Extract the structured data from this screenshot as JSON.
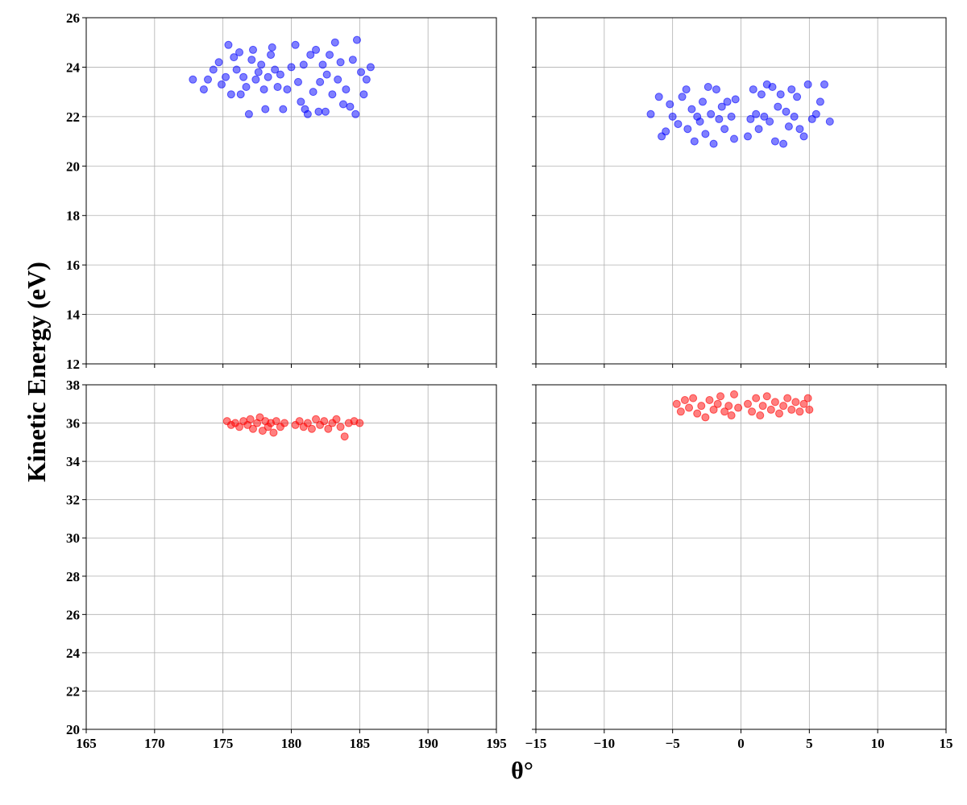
{
  "chart_data": {
    "type": "scatter",
    "xlabel": "θ°",
    "ylabel": "Kinetic Energy (eV)",
    "grid": true,
    "panels": [
      {
        "row": 0,
        "col": 0,
        "xlim": [
          165,
          195
        ],
        "ylim": [
          12,
          26
        ],
        "xticks": [
          165,
          170,
          175,
          180,
          185,
          190,
          195
        ],
        "yticks": [
          12,
          14,
          16,
          18,
          20,
          22,
          24,
          26
        ],
        "show_xticklabels": false,
        "show_yticklabels": true,
        "color": "#0000ff",
        "points": [
          [
            172.8,
            23.5
          ],
          [
            173.6,
            23.1
          ],
          [
            173.9,
            23.5
          ],
          [
            174.3,
            23.9
          ],
          [
            174.7,
            24.2
          ],
          [
            174.9,
            23.3
          ],
          [
            175.2,
            23.6
          ],
          [
            175.4,
            24.9
          ],
          [
            175.6,
            22.9
          ],
          [
            175.8,
            24.4
          ],
          [
            176.0,
            23.9
          ],
          [
            176.2,
            24.6
          ],
          [
            176.3,
            22.9
          ],
          [
            176.5,
            23.6
          ],
          [
            176.7,
            23.2
          ],
          [
            176.9,
            22.1
          ],
          [
            177.1,
            24.3
          ],
          [
            177.2,
            24.7
          ],
          [
            177.4,
            23.5
          ],
          [
            177.6,
            23.8
          ],
          [
            177.8,
            24.1
          ],
          [
            178.0,
            23.1
          ],
          [
            178.1,
            22.3
          ],
          [
            178.3,
            23.6
          ],
          [
            178.5,
            24.5
          ],
          [
            178.6,
            24.8
          ],
          [
            178.8,
            23.9
          ],
          [
            179.0,
            23.2
          ],
          [
            179.2,
            23.7
          ],
          [
            179.4,
            22.3
          ],
          [
            179.7,
            23.1
          ],
          [
            180.0,
            24.0
          ],
          [
            180.3,
            24.9
          ],
          [
            180.5,
            23.4
          ],
          [
            180.7,
            22.6
          ],
          [
            180.9,
            24.1
          ],
          [
            181.0,
            22.3
          ],
          [
            181.2,
            22.1
          ],
          [
            181.4,
            24.5
          ],
          [
            181.6,
            23.0
          ],
          [
            181.8,
            24.7
          ],
          [
            182.0,
            22.2
          ],
          [
            182.1,
            23.4
          ],
          [
            182.3,
            24.1
          ],
          [
            182.5,
            22.2
          ],
          [
            182.6,
            23.7
          ],
          [
            182.8,
            24.5
          ],
          [
            183.0,
            22.9
          ],
          [
            183.2,
            25.0
          ],
          [
            183.4,
            23.5
          ],
          [
            183.6,
            24.2
          ],
          [
            183.8,
            22.5
          ],
          [
            184.0,
            23.1
          ],
          [
            184.3,
            22.4
          ],
          [
            184.5,
            24.3
          ],
          [
            184.7,
            22.1
          ],
          [
            184.8,
            25.1
          ],
          [
            185.1,
            23.8
          ],
          [
            185.3,
            22.9
          ],
          [
            185.5,
            23.5
          ],
          [
            185.8,
            24.0
          ]
        ]
      },
      {
        "row": 0,
        "col": 1,
        "xlim": [
          -15,
          15
        ],
        "ylim": [
          12,
          26
        ],
        "xticks": [
          -15,
          -10,
          -5,
          0,
          5,
          10,
          15
        ],
        "yticks": [
          12,
          14,
          16,
          18,
          20,
          22,
          24,
          26
        ],
        "show_xticklabels": false,
        "show_yticklabels": false,
        "color": "#0000ff",
        "points": [
          [
            -6.6,
            22.1
          ],
          [
            -6.0,
            22.8
          ],
          [
            -5.8,
            21.2
          ],
          [
            -5.5,
            21.4
          ],
          [
            -5.2,
            22.5
          ],
          [
            -5.0,
            22.0
          ],
          [
            -4.6,
            21.7
          ],
          [
            -4.3,
            22.8
          ],
          [
            -4.0,
            23.1
          ],
          [
            -3.9,
            21.5
          ],
          [
            -3.6,
            22.3
          ],
          [
            -3.4,
            21.0
          ],
          [
            -3.2,
            22.0
          ],
          [
            -3.0,
            21.8
          ],
          [
            -2.8,
            22.6
          ],
          [
            -2.6,
            21.3
          ],
          [
            -2.4,
            23.2
          ],
          [
            -2.2,
            22.1
          ],
          [
            -2.0,
            20.9
          ],
          [
            -1.8,
            23.1
          ],
          [
            -1.6,
            21.9
          ],
          [
            -1.4,
            22.4
          ],
          [
            -1.2,
            21.5
          ],
          [
            -1.0,
            22.6
          ],
          [
            -0.7,
            22.0
          ],
          [
            -0.5,
            21.1
          ],
          [
            -0.4,
            22.7
          ],
          [
            0.5,
            21.2
          ],
          [
            0.7,
            21.9
          ],
          [
            0.9,
            23.1
          ],
          [
            1.1,
            22.1
          ],
          [
            1.3,
            21.5
          ],
          [
            1.5,
            22.9
          ],
          [
            1.7,
            22.0
          ],
          [
            1.9,
            23.3
          ],
          [
            2.1,
            21.8
          ],
          [
            2.3,
            23.2
          ],
          [
            2.5,
            21.0
          ],
          [
            2.7,
            22.4
          ],
          [
            2.9,
            22.9
          ],
          [
            3.1,
            20.9
          ],
          [
            3.3,
            22.2
          ],
          [
            3.5,
            21.6
          ],
          [
            3.7,
            23.1
          ],
          [
            3.9,
            22.0
          ],
          [
            4.1,
            22.8
          ],
          [
            4.3,
            21.5
          ],
          [
            4.6,
            21.2
          ],
          [
            4.9,
            23.3
          ],
          [
            5.2,
            21.9
          ],
          [
            5.5,
            22.1
          ],
          [
            5.8,
            22.6
          ],
          [
            6.1,
            23.3
          ],
          [
            6.5,
            21.8
          ]
        ]
      },
      {
        "row": 1,
        "col": 0,
        "xlim": [
          165,
          195
        ],
        "ylim": [
          20,
          38
        ],
        "xticks": [
          165,
          170,
          175,
          180,
          185,
          190,
          195
        ],
        "yticks": [
          20,
          22,
          24,
          26,
          28,
          30,
          32,
          34,
          36,
          38
        ],
        "show_xticklabels": true,
        "show_yticklabels": true,
        "color": "#ff0000",
        "points": [
          [
            175.3,
            36.1
          ],
          [
            175.6,
            35.9
          ],
          [
            175.9,
            36.0
          ],
          [
            176.2,
            35.8
          ],
          [
            176.5,
            36.1
          ],
          [
            176.8,
            35.9
          ],
          [
            177.0,
            36.2
          ],
          [
            177.2,
            35.7
          ],
          [
            177.5,
            36.0
          ],
          [
            177.7,
            36.3
          ],
          [
            177.9,
            35.6
          ],
          [
            178.1,
            36.1
          ],
          [
            178.3,
            35.8
          ],
          [
            178.5,
            36.0
          ],
          [
            178.7,
            35.5
          ],
          [
            178.9,
            36.1
          ],
          [
            179.2,
            35.8
          ],
          [
            179.5,
            36.0
          ],
          [
            180.3,
            35.9
          ],
          [
            180.6,
            36.1
          ],
          [
            180.9,
            35.8
          ],
          [
            181.2,
            36.0
          ],
          [
            181.5,
            35.7
          ],
          [
            181.8,
            36.2
          ],
          [
            182.1,
            35.9
          ],
          [
            182.4,
            36.1
          ],
          [
            182.7,
            35.7
          ],
          [
            183.0,
            36.0
          ],
          [
            183.3,
            36.2
          ],
          [
            183.6,
            35.8
          ],
          [
            183.9,
            35.3
          ],
          [
            184.2,
            36.0
          ],
          [
            184.6,
            36.1
          ],
          [
            185.0,
            36.0
          ]
        ]
      },
      {
        "row": 1,
        "col": 1,
        "xlim": [
          -15,
          15
        ],
        "ylim": [
          20,
          38
        ],
        "xticks": [
          -15,
          -10,
          -5,
          0,
          5,
          10,
          15
        ],
        "yticks": [
          20,
          22,
          24,
          26,
          28,
          30,
          32,
          34,
          36,
          38
        ],
        "show_xticklabels": true,
        "show_yticklabels": false,
        "color": "#ff0000",
        "points": [
          [
            -4.7,
            37.0
          ],
          [
            -4.4,
            36.6
          ],
          [
            -4.1,
            37.2
          ],
          [
            -3.8,
            36.8
          ],
          [
            -3.5,
            37.3
          ],
          [
            -3.2,
            36.5
          ],
          [
            -2.9,
            36.9
          ],
          [
            -2.6,
            36.3
          ],
          [
            -2.3,
            37.2
          ],
          [
            -2.0,
            36.7
          ],
          [
            -1.7,
            37.0
          ],
          [
            -1.5,
            37.4
          ],
          [
            -1.2,
            36.6
          ],
          [
            -0.9,
            36.9
          ],
          [
            -0.7,
            36.4
          ],
          [
            -0.5,
            37.5
          ],
          [
            -0.2,
            36.8
          ],
          [
            0.5,
            37.0
          ],
          [
            0.8,
            36.6
          ],
          [
            1.1,
            37.3
          ],
          [
            1.4,
            36.4
          ],
          [
            1.6,
            36.9
          ],
          [
            1.9,
            37.4
          ],
          [
            2.2,
            36.7
          ],
          [
            2.5,
            37.1
          ],
          [
            2.8,
            36.5
          ],
          [
            3.1,
            36.9
          ],
          [
            3.4,
            37.3
          ],
          [
            3.7,
            36.7
          ],
          [
            4.0,
            37.1
          ],
          [
            4.3,
            36.6
          ],
          [
            4.6,
            37.0
          ],
          [
            4.9,
            37.3
          ],
          [
            5.0,
            36.7
          ]
        ]
      }
    ]
  }
}
